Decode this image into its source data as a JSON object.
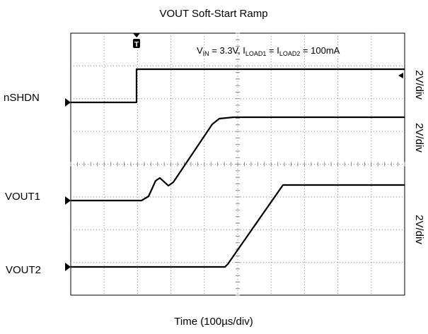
{
  "chart_data": {
    "type": "oscilloscope",
    "title": "VOUT Soft-Start Ramp",
    "x_label": "Time (100µs/div)",
    "annotation": {
      "parts": [
        "V",
        "IN",
        " = 3.3V, I",
        "LOAD1",
        " = I",
        "LOAD2",
        " = 100mA"
      ]
    },
    "trigger_label": "T",
    "channels": [
      {
        "name": "nSHDN",
        "scale": "2V/div"
      },
      {
        "name": "VOUT1",
        "scale": "2V/div"
      },
      {
        "name": "VOUT2",
        "scale": "2V/div"
      }
    ]
  }
}
